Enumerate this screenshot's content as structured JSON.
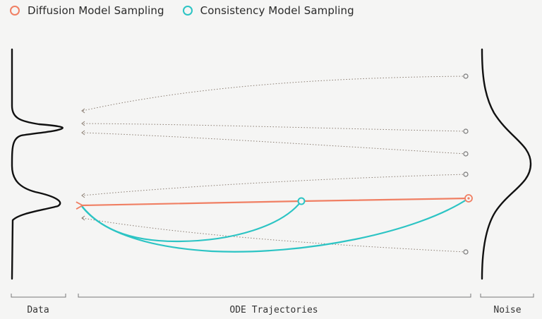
{
  "legend": {
    "diffusion": {
      "label": "Diffusion Model Sampling",
      "color": "#f07f63"
    },
    "consistency": {
      "label": "Consistency Model Sampling",
      "color": "#2cc4c4"
    }
  },
  "sections": {
    "data": "Data",
    "trajectories": "ODE Trajectories",
    "noise": "Noise"
  },
  "colors": {
    "background": "#f5f5f4",
    "curve": "#111111",
    "trajectory": "#8a7d72",
    "bracket": "#777777"
  }
}
